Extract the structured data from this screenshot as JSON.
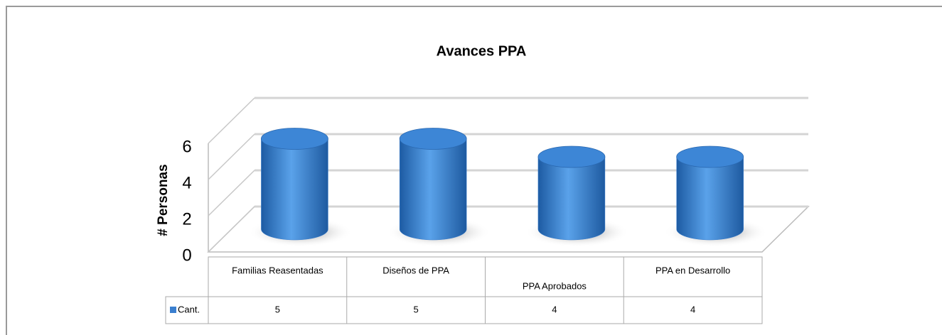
{
  "chart_data": {
    "type": "bar3d",
    "title": "Avances PPA",
    "ylabel": "# Personas",
    "categories": [
      "Familias Reasentadas",
      "Diseños de PPA",
      "PPA Aprobados",
      "PPA en Desarrollo"
    ],
    "series": [
      {
        "name": "Cant.",
        "color": "#3a7fcf",
        "values": [
          5,
          5,
          4,
          4
        ]
      }
    ],
    "ylim": [
      0,
      6
    ],
    "yticks": [
      0,
      2,
      4,
      6
    ],
    "grid": true,
    "legend": "table"
  }
}
